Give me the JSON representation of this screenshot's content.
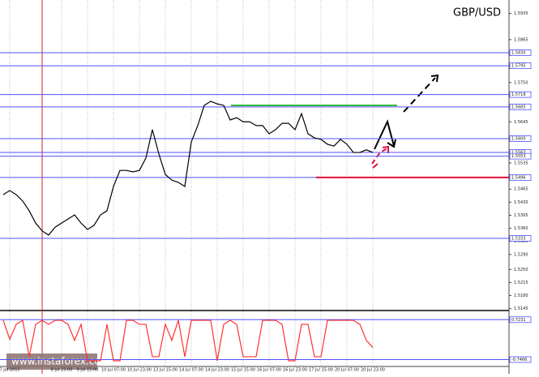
{
  "chart_data": [
    {
      "type": "line",
      "title": "GBP/USD",
      "watermark": "www.instaforex.com",
      "categories": [
        null,
        "7 Jul 2015",
        null,
        null,
        null,
        null,
        null,
        null,
        null,
        "8 Jul 23:00",
        null,
        null,
        null,
        "9 Jul 15:00",
        null,
        null,
        null,
        "10 Jul 07:00",
        null,
        null,
        null,
        "10 Jul 23:00",
        null,
        null,
        null,
        "13 Jul 15:00",
        null,
        null,
        null,
        "14 Jul 07:00",
        null,
        null,
        null,
        "14 Jul 23:00",
        null,
        null,
        null,
        "15 Jul 15:00",
        null,
        null,
        null,
        "16 Jul 07:00",
        null,
        null,
        null,
        "16 Jul 23:00",
        null,
        null,
        null,
        "17 Jul 15:00",
        null,
        null,
        null,
        "20 Jul 07:00",
        null,
        null,
        null,
        "20 Jul 23:00"
      ],
      "series": [
        {
          "color": "#000000",
          "values": [
            1.545,
            1.5461,
            1.545,
            1.5433,
            1.5407,
            1.5374,
            1.5353,
            1.5342,
            1.5363,
            1.5374,
            1.5385,
            1.5396,
            1.5374,
            1.5357,
            1.5368,
            1.5396,
            1.5407,
            1.5472,
            1.5515,
            1.5515,
            1.5511,
            1.5515,
            1.5548,
            1.5624,
            1.5559,
            1.5504,
            1.5489,
            1.5483,
            1.5472,
            1.5591,
            1.5635,
            1.5689,
            1.57,
            1.5693,
            1.5689,
            1.565,
            1.5656,
            1.5645,
            1.5645,
            1.5635,
            1.5635,
            1.5613,
            1.5624,
            1.5641,
            1.5641,
            1.5624,
            1.5667,
            1.5613,
            1.5602,
            1.5598,
            1.5585,
            1.558,
            1.5598,
            1.5585,
            1.5563,
            1.5563,
            1.557,
            1.5563
          ]
        }
      ],
      "ylim": [
        1.514,
        1.5971
      ],
      "yticks": [
        1.5935,
        1.5865,
        {
          "value": 1.575,
          "label": "1.5750"
        },
        1.5645,
        1.5535,
        1.5465,
        {
          "value": 1.543,
          "label": "1.5430"
        },
        1.5395,
        {
          "value": 1.536,
          "label": "1.5360"
        },
        1.5325,
        {
          "value": 1.529,
          "label": "1.5290"
        },
        {
          "value": 1.525,
          "label": "1.5250"
        },
        1.5215,
        {
          "value": 1.518,
          "label": "1.5180"
        },
        1.5145
      ],
      "levels": [
        {
          "value": 1.583,
          "label": "1.5830"
        },
        1.5795,
        1.5718,
        1.5685,
        {
          "value": 1.56,
          "label": "1.5600"
        },
        1.5563,
        1.5553,
        1.5496,
        1.5333
      ],
      "level_color": "#5050ff",
      "marks": [
        {
          "value": 1.5689,
          "color": "#33bb33"
        },
        {
          "value": 1.5496,
          "color": "#e0103a"
        }
      ]
    },
    {
      "type": "line",
      "series": [
        {
          "color": "#ff3030",
          "values": [
            0.7,
            0.0,
            0.55,
            0.7,
            -0.64,
            0.55,
            0.7,
            0.55,
            0.7,
            0.7,
            0.55,
            -0.04,
            0.55,
            -0.79,
            -0.79,
            -0.79,
            0.55,
            -0.79,
            -0.79,
            0.7,
            0.7,
            0.55,
            0.55,
            -0.64,
            -0.64,
            0.55,
            -0.04,
            0.7,
            -0.64,
            0.7,
            0.7,
            0.7,
            0.7,
            -0.79,
            0.55,
            0.7,
            0.55,
            -0.64,
            -0.64,
            -0.64,
            0.7,
            0.7,
            0.7,
            0.55,
            -0.79,
            -0.79,
            0.55,
            0.55,
            -0.64,
            -0.64,
            0.7,
            0.7,
            0.7,
            0.7,
            0.7,
            0.55,
            -0.04,
            -0.3
          ]
        }
      ],
      "ylim": [
        -1,
        1
      ],
      "levels": [
        0.7231,
        -0.7466
      ],
      "level_color": "#5050ff"
    }
  ]
}
